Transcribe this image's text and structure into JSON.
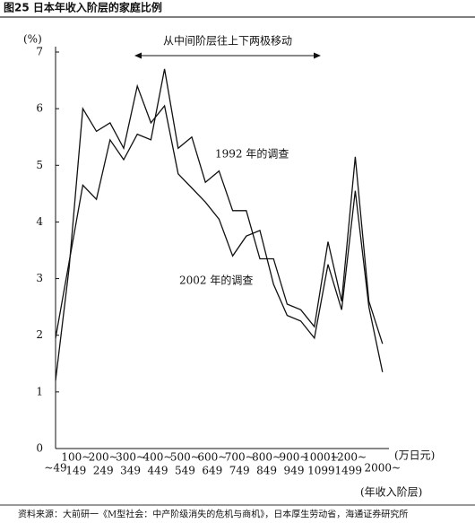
{
  "chart_data": {
    "type": "line",
    "title": "图25 日本年收入阶层的家庭比例",
    "y_label": "(%)",
    "x_unit": "(万日元)",
    "x_label": "(年收入阶层)",
    "arrow_note": "从中间阶层往上下两极移动",
    "annotations": [
      "1992 年的调查",
      "2002 年的调查"
    ],
    "source": "资料来源：大前研一《M型社会：中产阶级消失的危机与商机》，日本厚生劳动省，海通证券研究所",
    "categories": [
      [
        "~49"
      ],
      [
        "100~",
        "149"
      ],
      null,
      [
        "200~",
        "249"
      ],
      null,
      [
        "300~",
        "349"
      ],
      null,
      [
        "400~",
        "449"
      ],
      null,
      [
        "500~",
        "549"
      ],
      null,
      [
        "600~",
        "649"
      ],
      null,
      [
        "700~",
        "749"
      ],
      null,
      [
        "800~",
        "849"
      ],
      null,
      [
        "900~",
        "949"
      ],
      null,
      [
        "1000~",
        "1099"
      ],
      null,
      [
        "1200~",
        "1499"
      ],
      null,
      null,
      [
        "2000~"
      ]
    ],
    "series": [
      {
        "name": "1992 年的调查",
        "color": "#111111",
        "values": [
          1.95,
          3.3,
          4.65,
          4.4,
          5.45,
          5.1,
          5.55,
          5.45,
          6.7,
          5.3,
          5.5,
          4.7,
          4.9,
          4.2,
          4.2,
          3.35,
          3.35,
          2.55,
          2.45,
          2.15,
          3.65,
          2.6,
          5.15,
          2.6,
          1.85
        ]
      },
      {
        "name": "2002 年的调查",
        "color": "#111111",
        "values": [
          1.2,
          3.2,
          6.0,
          5.6,
          5.75,
          5.3,
          6.4,
          5.75,
          6.05,
          4.85,
          4.6,
          4.35,
          4.05,
          3.4,
          3.75,
          3.85,
          2.9,
          2.35,
          2.25,
          1.95,
          3.25,
          2.45,
          4.55,
          2.5,
          1.35
        ]
      }
    ],
    "ylim": [
      0,
      7
    ],
    "yticks": [
      0,
      1,
      2,
      3,
      4,
      5,
      6,
      7
    ]
  }
}
